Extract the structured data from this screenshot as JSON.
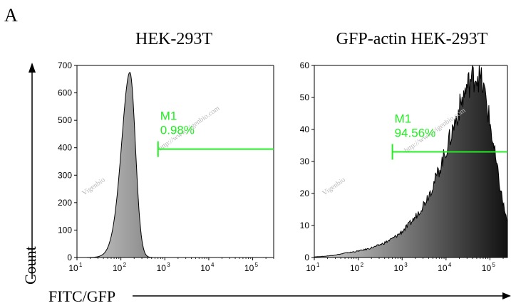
{
  "panel_letter": "A",
  "ylabel": "Count",
  "xlabel": "FITC/GFP",
  "colors": {
    "marker": "#22ee22",
    "fill_dark": "#1a1a1a",
    "fill_light": "#d0d0d0"
  },
  "watermarks": [
    "Vigenbio",
    "http://www.vigenbio.com",
    "Vigenbio",
    "http://www.vigenbio.com"
  ],
  "chart_data": [
    {
      "type": "area",
      "title": "HEK-293T",
      "xscale": "log",
      "xlim": [
        10,
        300000
      ],
      "ylim": [
        0,
        700
      ],
      "yticks": [
        0,
        100,
        200,
        300,
        400,
        500,
        600,
        700
      ],
      "xtick_exponents": [
        1,
        2,
        3,
        4,
        5
      ],
      "peak_x": 160,
      "peak_y": 675,
      "width_decades": 0.18,
      "tail_decades": 0.35,
      "marker": {
        "label": "M1",
        "percent": "0.98%",
        "x_start": 700,
        "x_end": 300000,
        "y": 395
      }
    },
    {
      "type": "area",
      "title": "GFP-actin HEK-293T",
      "xscale": "log",
      "xlim": [
        10,
        250000
      ],
      "ylim": [
        0,
        60
      ],
      "yticks": [
        0,
        10,
        20,
        30,
        40,
        50,
        60
      ],
      "xtick_exponents": [
        1,
        2,
        3,
        4,
        5
      ],
      "peak_x": 50000,
      "peak_y": 57,
      "width_decades": 0.55,
      "tail_decades": 1.1,
      "marker": {
        "label": "M1",
        "percent": "94.56%",
        "x_start": 600,
        "x_end": 250000,
        "y": 33
      }
    }
  ]
}
